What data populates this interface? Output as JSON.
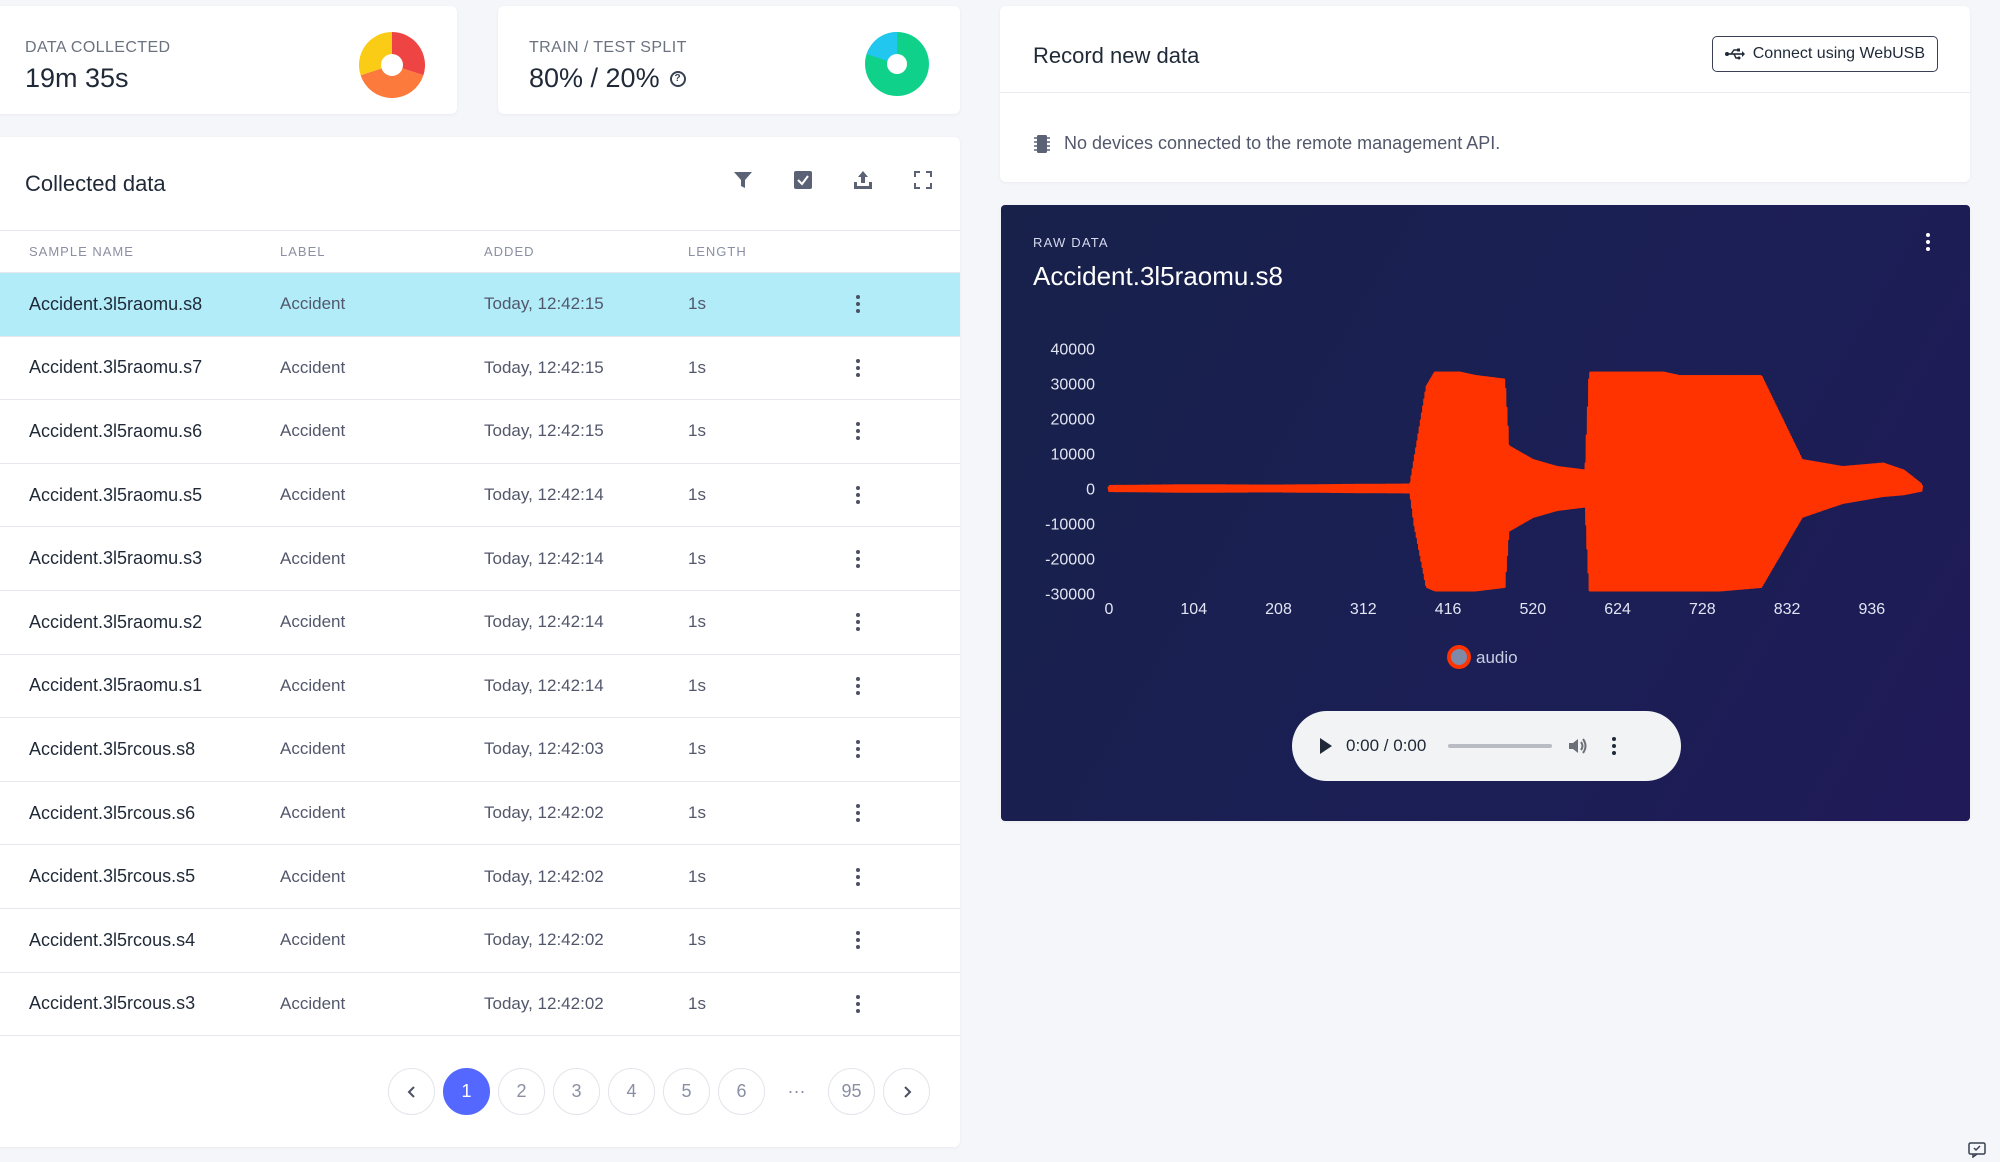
{
  "stats": {
    "collected": {
      "label": "DATA COLLECTED",
      "value": "19m 35s"
    },
    "split": {
      "label": "TRAIN / TEST SPLIT",
      "value": "80% / 20%",
      "help_icon": "question-circle-icon"
    }
  },
  "collected": {
    "title": "Collected data",
    "toolbar_icons": [
      "filter-icon",
      "checkbox-icon",
      "upload-icon",
      "fullscreen-icon"
    ],
    "columns": [
      "SAMPLE NAME",
      "LABEL",
      "ADDED",
      "LENGTH"
    ],
    "rows": [
      {
        "name": "Accident.3l5raomu.s8",
        "label": "Accident",
        "added": "Today, 12:42:15",
        "length": "1s",
        "selected": true
      },
      {
        "name": "Accident.3l5raomu.s7",
        "label": "Accident",
        "added": "Today, 12:42:15",
        "length": "1s"
      },
      {
        "name": "Accident.3l5raomu.s6",
        "label": "Accident",
        "added": "Today, 12:42:15",
        "length": "1s"
      },
      {
        "name": "Accident.3l5raomu.s5",
        "label": "Accident",
        "added": "Today, 12:42:14",
        "length": "1s"
      },
      {
        "name": "Accident.3l5raomu.s3",
        "label": "Accident",
        "added": "Today, 12:42:14",
        "length": "1s"
      },
      {
        "name": "Accident.3l5raomu.s2",
        "label": "Accident",
        "added": "Today, 12:42:14",
        "length": "1s"
      },
      {
        "name": "Accident.3l5raomu.s1",
        "label": "Accident",
        "added": "Today, 12:42:14",
        "length": "1s"
      },
      {
        "name": "Accident.3l5rcous.s8",
        "label": "Accident",
        "added": "Today, 12:42:03",
        "length": "1s"
      },
      {
        "name": "Accident.3l5rcous.s6",
        "label": "Accident",
        "added": "Today, 12:42:02",
        "length": "1s"
      },
      {
        "name": "Accident.3l5rcous.s5",
        "label": "Accident",
        "added": "Today, 12:42:02",
        "length": "1s"
      },
      {
        "name": "Accident.3l5rcous.s4",
        "label": "Accident",
        "added": "Today, 12:42:02",
        "length": "1s"
      },
      {
        "name": "Accident.3l5rcous.s3",
        "label": "Accident",
        "added": "Today, 12:42:02",
        "length": "1s"
      }
    ],
    "pagination": {
      "pages": [
        "1",
        "2",
        "3",
        "4",
        "5",
        "6"
      ],
      "ellipsis": "···",
      "last": "95",
      "active": "1"
    }
  },
  "record": {
    "title": "Record new data",
    "button_label": "Connect using WebUSB",
    "button_icon": "usb-icon",
    "message": "No devices connected to the remote management API.",
    "message_icon": "chip-icon"
  },
  "raw": {
    "label": "RAW DATA",
    "title": "Accident.3l5raomu.s8",
    "player": {
      "time": "0:00 / 0:00"
    }
  },
  "colors": {
    "accent": "#5468ff",
    "selected_row": "#b1ecf8",
    "waveform": "#ff3300",
    "raw_bg": "#1b1f55"
  },
  "chart_data": {
    "type": "line",
    "title": "",
    "xlabel": "",
    "ylabel": "",
    "x_ticks": [
      0,
      104,
      208,
      312,
      416,
      520,
      624,
      728,
      832,
      936
    ],
    "y_ticks": [
      40000,
      30000,
      20000,
      10000,
      0,
      -10000,
      -20000,
      -30000
    ],
    "xlim": [
      0,
      1000
    ],
    "ylim": [
      -35000,
      45000
    ],
    "legend_position": "bottom-center",
    "grid": false,
    "series": [
      {
        "name": "audio",
        "color": "#ff3300",
        "envelope_x": [
          0,
          100,
          200,
          300,
          370,
          375,
          390,
          400,
          430,
          450,
          485,
          490,
          520,
          550,
          585,
          590,
          600,
          640,
          680,
          700,
          750,
          800,
          850,
          900,
          950,
          975,
          997
        ],
        "envelope_max": [
          600,
          800,
          700,
          900,
          1000,
          8000,
          29000,
          33000,
          33000,
          32000,
          31000,
          12000,
          8000,
          6000,
          5000,
          33000,
          33000,
          33000,
          33000,
          32000,
          32000,
          32000,
          8000,
          6000,
          7000,
          5000,
          1000
        ],
        "envelope_min": [
          -600,
          -800,
          -700,
          -900,
          -1000,
          -10000,
          -28000,
          -29000,
          -29000,
          -29000,
          -28000,
          -12000,
          -8000,
          -6000,
          -5000,
          -29000,
          -29000,
          -29000,
          -29000,
          -29000,
          -29000,
          -28000,
          -8000,
          -4000,
          -2000,
          -1500,
          -500
        ]
      }
    ]
  }
}
